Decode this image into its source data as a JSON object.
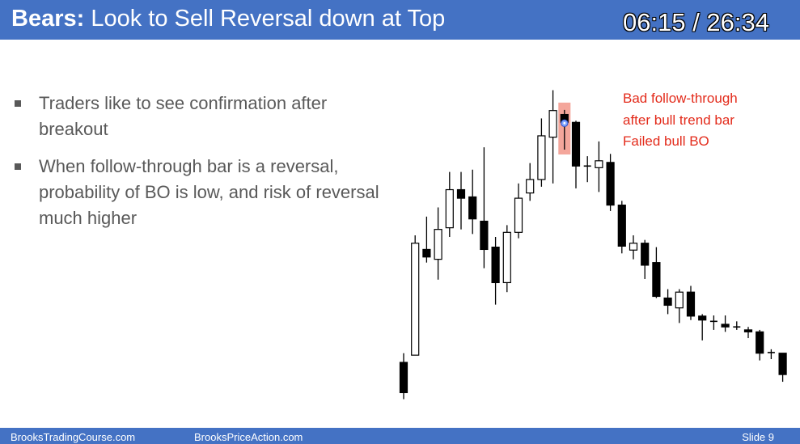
{
  "header": {
    "title_bold": "Bears:",
    "title_rest": "Look to Sell Reversal down at Top",
    "timer": "06:15 / 26:34"
  },
  "bullets": [
    "Traders like to see confirmation after breakout",
    "When follow-through bar is a reversal, probability of BO is low, and risk of reversal much higher"
  ],
  "annotation": {
    "lines": [
      "Bad follow-through",
      "after bull trend bar",
      "Failed bull BO"
    ],
    "color": "#e32b1b"
  },
  "footer": {
    "left": "BrooksTradingCourse.com",
    "middle": "BrooksPriceAction.com",
    "slide": "Slide  9"
  },
  "colors": {
    "header_bg": "#4472c4",
    "bull_body": "#ffffff",
    "bear_body": "#000000",
    "highlight": "#f08070"
  },
  "chart_data": {
    "type": "candlestick",
    "title": "",
    "xlabel": "",
    "ylabel": "",
    "axes_shown": false,
    "ylim": [
      0,
      100
    ],
    "highlighted_bar_index": 14,
    "bars": [
      {
        "o": 11.8,
        "h": 14.6,
        "l": 0.6,
        "c": 2.6
      },
      {
        "o": 14.0,
        "h": 50.5,
        "l": 14.0,
        "c": 48.1
      },
      {
        "o": 46.2,
        "h": 56.2,
        "l": 42.2,
        "c": 43.9
      },
      {
        "o": 43.2,
        "h": 59.0,
        "l": 37.0,
        "c": 52.3
      },
      {
        "o": 52.8,
        "h": 69.8,
        "l": 50.0,
        "c": 64.4
      },
      {
        "o": 64.4,
        "h": 69.8,
        "l": 52.3,
        "c": 61.8
      },
      {
        "o": 62.2,
        "h": 70.5,
        "l": 50.9,
        "c": 55.5
      },
      {
        "o": 54.8,
        "h": 77.3,
        "l": 40.5,
        "c": 46.2
      },
      {
        "o": 46.9,
        "h": 50.0,
        "l": 29.4,
        "c": 36.1
      },
      {
        "o": 36.1,
        "h": 53.6,
        "l": 33.2,
        "c": 51.4
      },
      {
        "o": 51.4,
        "h": 66.3,
        "l": 49.6,
        "c": 61.8
      },
      {
        "o": 63.4,
        "h": 72.5,
        "l": 61.0,
        "c": 67.5
      },
      {
        "o": 67.5,
        "h": 86.1,
        "l": 65.3,
        "c": 80.8
      },
      {
        "o": 80.4,
        "h": 94.7,
        "l": 66.3,
        "c": 88.5
      },
      {
        "o": 87.3,
        "h": 88.7,
        "l": 76.6,
        "c": 84.9
      },
      {
        "o": 84.9,
        "h": 85.4,
        "l": 64.8,
        "c": 71.6
      },
      {
        "o": 71.6,
        "h": 74.6,
        "l": 66.7,
        "c": 71.1
      },
      {
        "o": 71.1,
        "h": 79.1,
        "l": 63.7,
        "c": 73.2
      },
      {
        "o": 72.7,
        "h": 75.3,
        "l": 57.9,
        "c": 59.7
      },
      {
        "o": 59.7,
        "h": 61.0,
        "l": 45.0,
        "c": 47.2
      },
      {
        "o": 46.0,
        "h": 50.5,
        "l": 43.2,
        "c": 48.1
      },
      {
        "o": 48.1,
        "h": 49.1,
        "l": 37.2,
        "c": 41.4
      },
      {
        "o": 42.2,
        "h": 46.9,
        "l": 31.4,
        "c": 31.9
      },
      {
        "o": 31.4,
        "h": 34.1,
        "l": 26.5,
        "c": 29.2
      },
      {
        "o": 28.4,
        "h": 34.1,
        "l": 23.8,
        "c": 33.2
      },
      {
        "o": 33.2,
        "h": 35.1,
        "l": 24.7,
        "c": 25.9
      },
      {
        "o": 25.9,
        "h": 26.5,
        "l": 18.5,
        "c": 24.7
      },
      {
        "o": 24.3,
        "h": 26.1,
        "l": 21.7,
        "c": 24.0
      },
      {
        "o": 23.4,
        "h": 26.1,
        "l": 21.1,
        "c": 22.6
      },
      {
        "o": 22.6,
        "h": 24.3,
        "l": 21.7,
        "c": 22.4
      },
      {
        "o": 21.7,
        "h": 22.6,
        "l": 19.2,
        "c": 21.1
      },
      {
        "o": 21.1,
        "h": 21.7,
        "l": 12.4,
        "c": 14.6
      },
      {
        "o": 14.8,
        "h": 15.8,
        "l": 12.8,
        "c": 14.5
      },
      {
        "o": 14.6,
        "h": 14.6,
        "l": 5.9,
        "c": 8.1
      }
    ]
  }
}
